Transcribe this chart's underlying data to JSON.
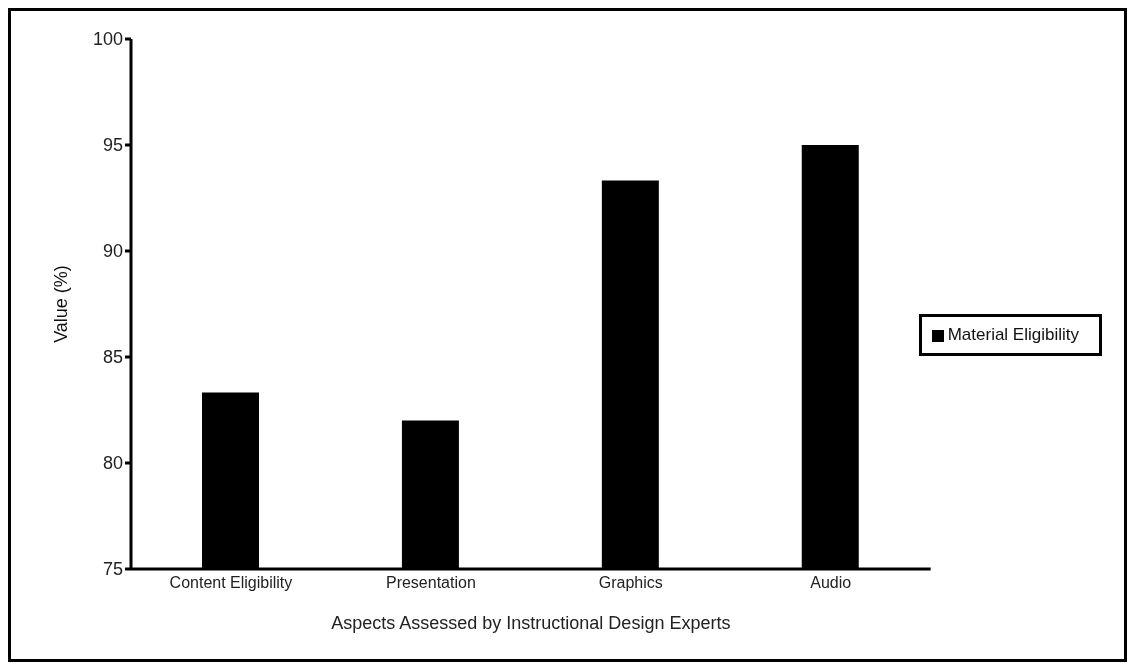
{
  "chart_data": {
    "type": "bar",
    "xlabel": "Aspects Assessed by Instructional Design Experts",
    "ylabel": "Value (%)",
    "categories": [
      "Content Eligibility",
      "Presentation",
      "Graphics",
      "Audio"
    ],
    "series": [
      {
        "name": "Material Eligibility",
        "color": "#000000",
        "values": [
          83.33,
          82,
          93.33,
          95
        ]
      }
    ],
    "ylim": [
      75,
      100
    ],
    "yticks": [
      75,
      80,
      85,
      90,
      95,
      100
    ],
    "grid": false,
    "legend": "right"
  }
}
